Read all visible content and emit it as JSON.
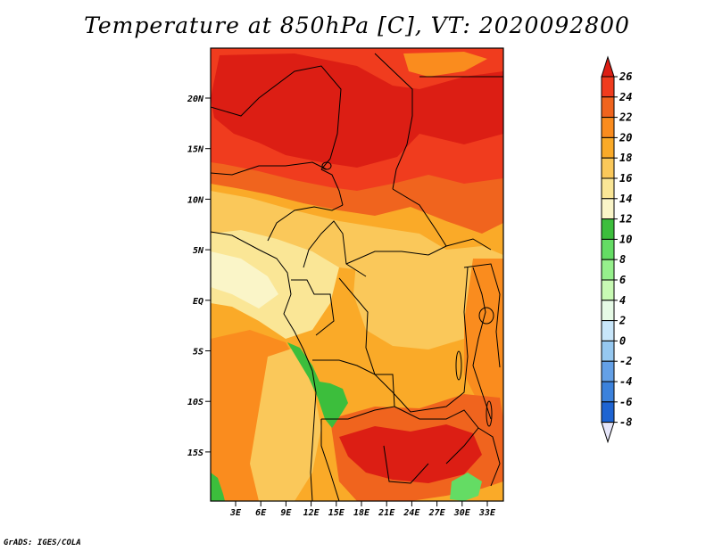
{
  "title": "Temperature at 850hPa [C], VT: 2020092800",
  "credit": "GrADS: IGES/COLA",
  "map": {
    "lat_labels": [
      "20N",
      "15N",
      "10N",
      "5N",
      "EQ",
      "5S",
      "10S",
      "15S"
    ],
    "lon_labels": [
      "3E",
      "6E",
      "9E",
      "12E",
      "15E",
      "18E",
      "21E",
      "24E",
      "27E",
      "30E",
      "33E"
    ]
  },
  "colorbar": {
    "labels": [
      "26",
      "24",
      "22",
      "20",
      "18",
      "16",
      "14",
      "12",
      "10",
      "8",
      "6",
      "4",
      "2",
      "0",
      "-2",
      "-4",
      "-6",
      "-8"
    ],
    "colors": [
      "#dc1e14",
      "#f03c1e",
      "#f0641e",
      "#fa8c1e",
      "#faaa28",
      "#fac85a",
      "#fae696",
      "#faf5c8",
      "#3cbe3c",
      "#64dc64",
      "#96f08c",
      "#c8fab4",
      "#e6fae6",
      "#c8e6fa",
      "#96c8f0",
      "#64a0e6",
      "#3c82dc",
      "#1e64d2",
      "#1446b4",
      "#0a2896",
      "#000a6e",
      "#e6e6fa"
    ]
  }
}
